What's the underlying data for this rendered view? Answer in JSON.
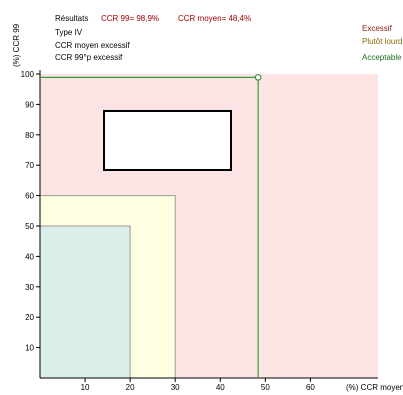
{
  "chart_data": {
    "type": "area",
    "header": {
      "results_label": "Résultats",
      "ccr99_text": "CCR 99= 98,9%",
      "ccr_moyen_text": "CCR moyen= 48,4%",
      "lines": [
        "Type IV",
        "CCR moyen excessif",
        "CCR 99°p excessif"
      ]
    },
    "legend": [
      {
        "label": "Excessif",
        "color": "#8b1a1a"
      },
      {
        "label": "Plutôt lourd",
        "color": "#8b6a00"
      },
      {
        "label": "Acceptable",
        "color": "#1f6b1f"
      }
    ],
    "xlabel": "(%) CCR moyen",
    "ylabel": "(%) CCR 99",
    "xlim": [
      0,
      75
    ],
    "ylim": [
      0,
      100
    ],
    "xticks": [
      10,
      20,
      30,
      40,
      50,
      60
    ],
    "yticks": [
      10,
      20,
      30,
      40,
      50,
      60,
      70,
      80,
      90,
      100
    ],
    "zones": [
      {
        "name": "Excessif",
        "x": [
          0,
          75
        ],
        "y": [
          0,
          100
        ],
        "fill": "#fde4e4"
      },
      {
        "name": "Plutôt lourd",
        "x": [
          0,
          30
        ],
        "y": [
          0,
          60
        ],
        "fill": "#fefee0"
      },
      {
        "name": "Acceptable",
        "x": [
          0,
          20
        ],
        "y": [
          0,
          50
        ],
        "fill": "#dceee9"
      }
    ],
    "result_point": {
      "x": 48.4,
      "y": 98.9
    },
    "result_color": "#3a9a3a",
    "zone_border_color": "#999999"
  }
}
